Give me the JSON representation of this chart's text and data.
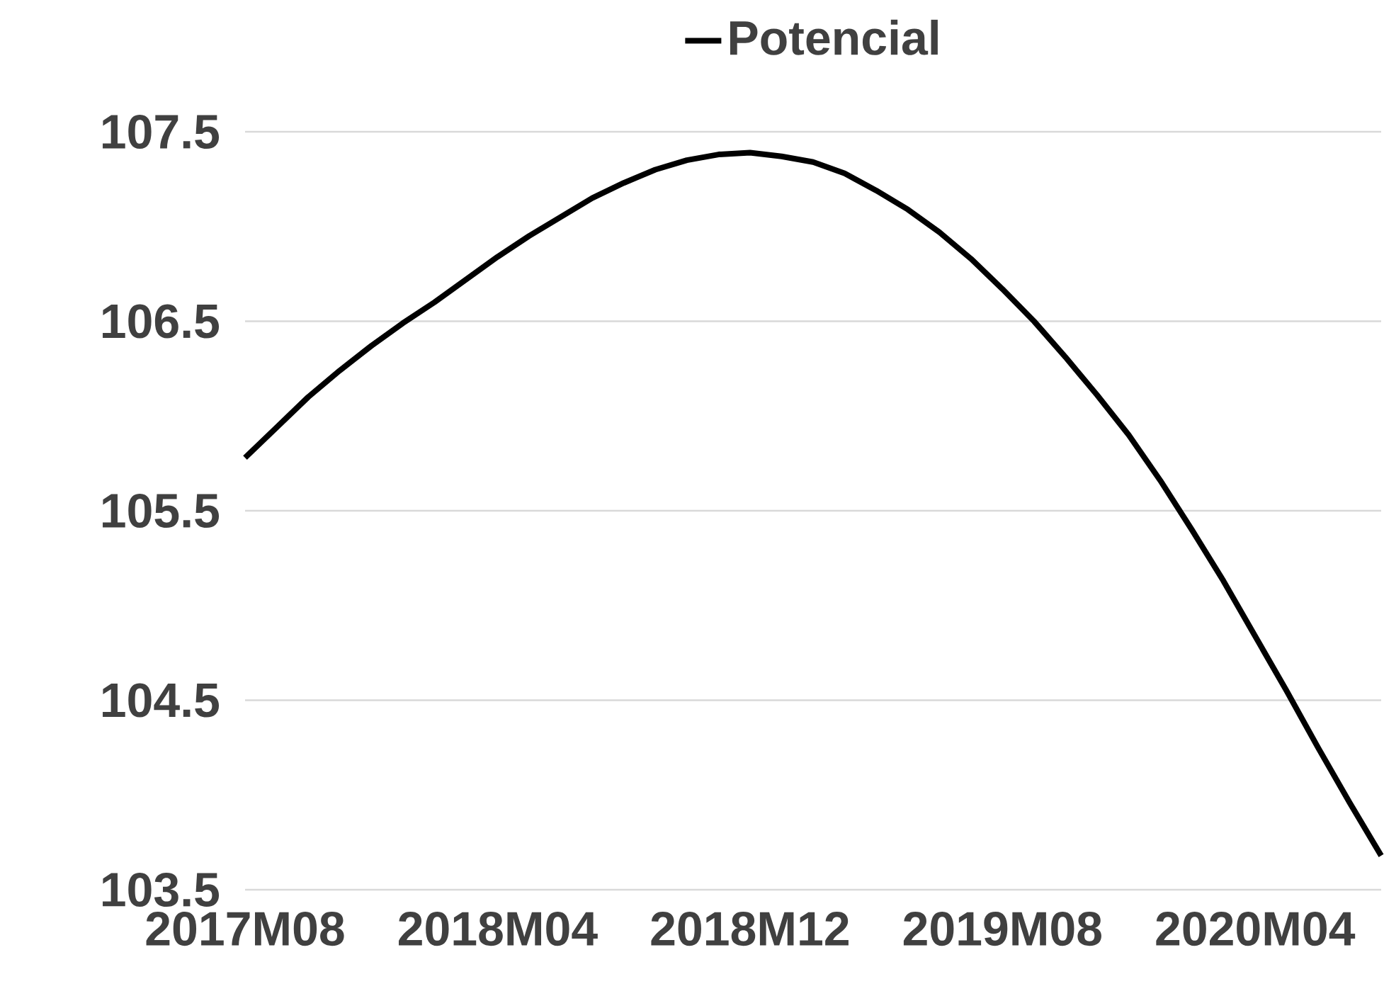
{
  "chart_data": {
    "type": "line",
    "categories": [
      "2017M08",
      null,
      null,
      null,
      null,
      null,
      null,
      null,
      "2018M04",
      null,
      null,
      null,
      null,
      null,
      null,
      null,
      "2018M12",
      null,
      null,
      null,
      null,
      null,
      null,
      null,
      "2019M08",
      null,
      null,
      null,
      null,
      null,
      null,
      null,
      "2020M04",
      null,
      null,
      null,
      null
    ],
    "series": [
      {
        "name": "Potencial",
        "color": "#000000",
        "values": [
          105.78,
          105.94,
          106.1,
          106.24,
          106.37,
          106.49,
          106.6,
          106.72,
          106.84,
          106.95,
          107.05,
          107.15,
          107.23,
          107.3,
          107.35,
          107.38,
          107.39,
          107.37,
          107.34,
          107.28,
          107.19,
          107.09,
          106.97,
          106.83,
          106.67,
          106.5,
          106.31,
          106.11,
          105.9,
          105.66,
          105.4,
          105.13,
          104.84,
          104.55,
          104.25,
          103.96,
          103.68
        ]
      }
    ],
    "ylim": [
      103.5,
      107.5
    ],
    "yticks": [
      103.5,
      104.5,
      105.5,
      106.5,
      107.5
    ],
    "grid": "y",
    "legend": "top"
  }
}
